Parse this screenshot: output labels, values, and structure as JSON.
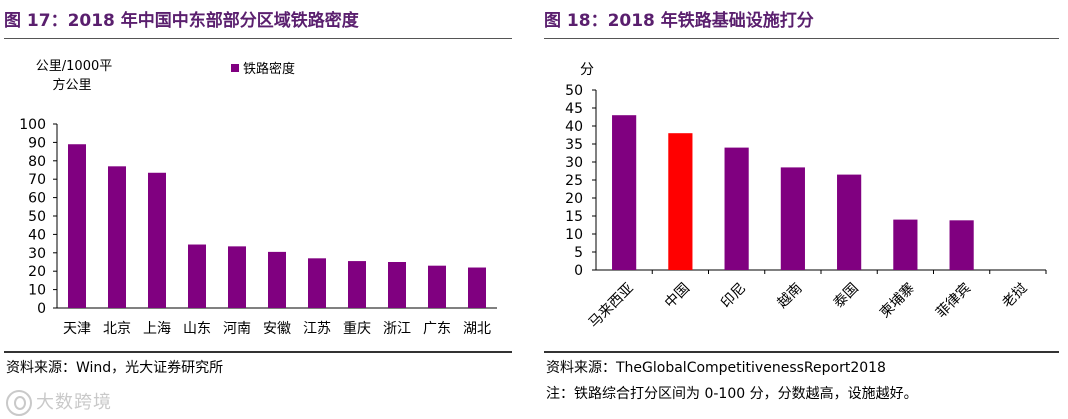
{
  "left": {
    "title": "图 17：2018 年中国中东部部分区域铁路密度",
    "source": "资料来源：Wind，光大证券研究所"
  },
  "right": {
    "title": "图 18：2018 年铁路基础设施打分",
    "source": "资料来源：TheGlobalCompetitivenessReport2018",
    "note": "注：铁路综合打分区间为 0-100 分，分数越高，设施越好。"
  },
  "watermark": "大数跨境",
  "colors": {
    "bar": "#800080",
    "highlight": "#ff0000",
    "title": "#5a1f6e"
  },
  "chart_data": [
    {
      "type": "bar",
      "title": "图 17：2018 年中国中东部部分区域铁路密度",
      "ylabel_lines": [
        "公里/1000平",
        "方公里"
      ],
      "legend": "铁路密度",
      "categories": [
        "天津",
        "北京",
        "上海",
        "山东",
        "河南",
        "安徽",
        "江苏",
        "重庆",
        "浙江",
        "广东",
        "湖北"
      ],
      "values": [
        89,
        77,
        73.5,
        34.5,
        33.5,
        30.5,
        27,
        25.5,
        25,
        23,
        22
      ],
      "ylim": [
        0,
        100
      ],
      "yticks": [
        0,
        10,
        20,
        30,
        40,
        50,
        60,
        70,
        80,
        90,
        100
      ],
      "grid": false
    },
    {
      "type": "bar",
      "title": "图 18：2018 年铁路基础设施打分",
      "ylabel": "分",
      "categories": [
        "马来西亚",
        "中国",
        "印尼",
        "越南",
        "泰国",
        "柬埔寨",
        "菲律宾",
        "老挝"
      ],
      "values": [
        43,
        38,
        34,
        28.5,
        26.5,
        14,
        13.8,
        0
      ],
      "highlight_index": 1,
      "ylim": [
        0,
        50
      ],
      "yticks": [
        0,
        5,
        10,
        15,
        20,
        25,
        30,
        35,
        40,
        45,
        50
      ],
      "grid": false
    }
  ]
}
